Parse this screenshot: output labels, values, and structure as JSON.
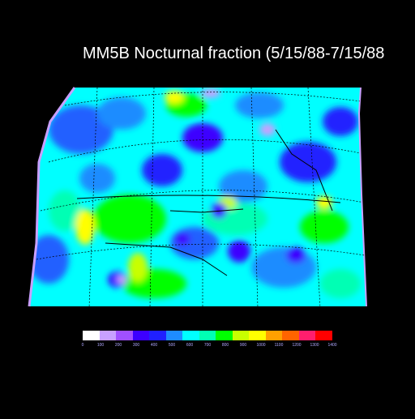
{
  "title": "MM5B Nocturnal fraction (5/15/88-7/15/88",
  "legend": {
    "colors": [
      "#ffffff",
      "#c8a0ff",
      "#a050ff",
      "#3c00ff",
      "#2020ff",
      "#1e8cff",
      "#00ffff",
      "#00ffb4",
      "#00ff00",
      "#c8ff00",
      "#ffff00",
      "#ffa000",
      "#ff6400",
      "#ff1e6e",
      "#ff0000"
    ],
    "labels": [
      "0",
      "100",
      "200",
      "300",
      "400",
      "500",
      "600",
      "700",
      "800",
      "900",
      "1000",
      "1100",
      "1200",
      "1300",
      "1400"
    ]
  }
}
